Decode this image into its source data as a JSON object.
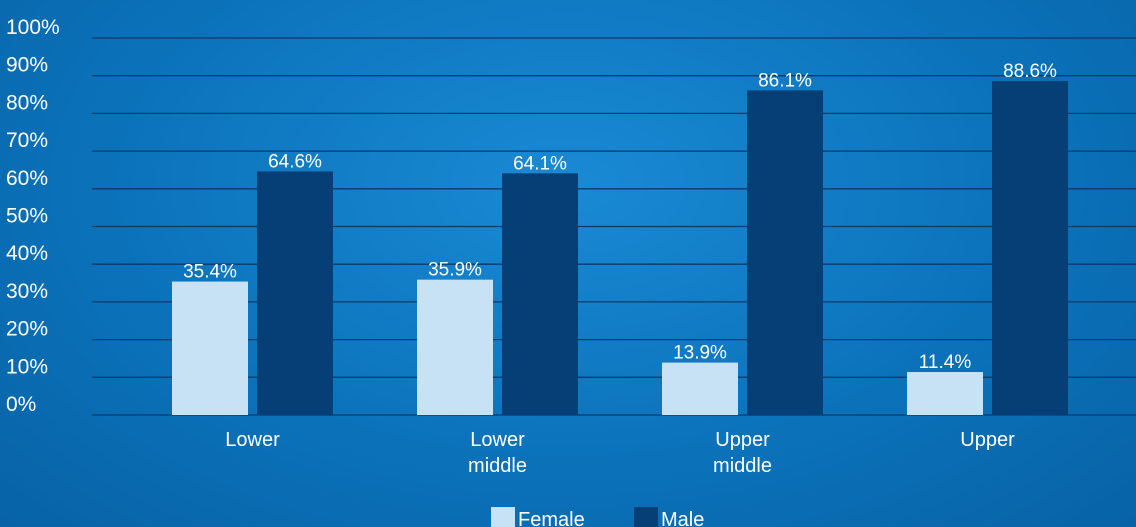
{
  "chart_data": {
    "type": "bar",
    "categories": [
      [
        "Lower"
      ],
      [
        "Lower",
        "middle"
      ],
      [
        "Upper",
        "middle"
      ],
      [
        "Upper"
      ]
    ],
    "series": [
      {
        "name": "Female",
        "values": [
          35.4,
          35.9,
          13.9,
          11.4
        ],
        "labels": [
          "35.4%",
          "35.9%",
          "13.9%",
          "11.4%"
        ],
        "color": "#c6e2f4"
      },
      {
        "name": "Male",
        "values": [
          64.6,
          64.1,
          86.1,
          88.6
        ],
        "labels": [
          "64.6%",
          "64.1%",
          "86.1%",
          "88.6%"
        ],
        "color": "#063f75"
      }
    ],
    "ylim": [
      0,
      100
    ],
    "yticks": [
      "0%",
      "10%",
      "20%",
      "30%",
      "40%",
      "50%",
      "60%",
      "70%",
      "80%",
      "90%",
      "100%"
    ],
    "grid": true,
    "legend_position": "bottom-center",
    "gridline_color": "#0a3a6a"
  }
}
